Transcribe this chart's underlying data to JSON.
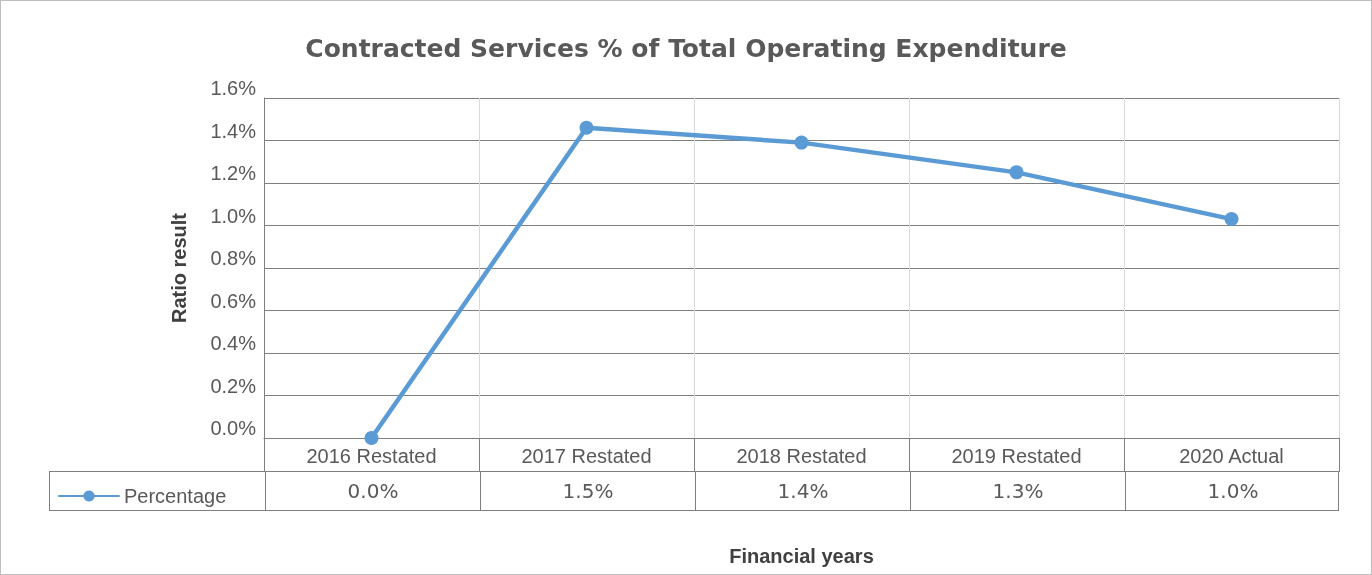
{
  "chart_data": {
    "type": "line",
    "title": "Contracted Services % of Total Operating Expenditure",
    "xlabel": "Financial years",
    "ylabel": "Ratio result",
    "categories": [
      "2016 Restated",
      "2017 Restated",
      "2018 Restated",
      "2019 Restated",
      "2020 Actual"
    ],
    "series": [
      {
        "name": "Percentage",
        "color": "#5b9bd5",
        "values": [
          0.0,
          1.46,
          1.39,
          1.25,
          1.03
        ],
        "value_labels": [
          "0.0%",
          "1.5%",
          "1.4%",
          "1.3%",
          "1.0%"
        ]
      }
    ],
    "ylim": [
      0,
      1.6
    ],
    "yticks": [
      {
        "value": 0,
        "label": "0.0%"
      },
      {
        "value": 0.2,
        "label": "0.2%"
      },
      {
        "value": 0.4,
        "label": "0.4%"
      },
      {
        "value": 0.6,
        "label": "0.6%"
      },
      {
        "value": 0.8,
        "label": "0.8%"
      },
      {
        "value": 1.0,
        "label": "1.0%"
      },
      {
        "value": 1.2,
        "label": "1.2%"
      },
      {
        "value": 1.4,
        "label": "1.4%"
      },
      {
        "value": 1.6,
        "label": "1.6%"
      }
    ],
    "grid": true,
    "legend": "bottom",
    "marker": "circle",
    "line_style": "solid"
  }
}
